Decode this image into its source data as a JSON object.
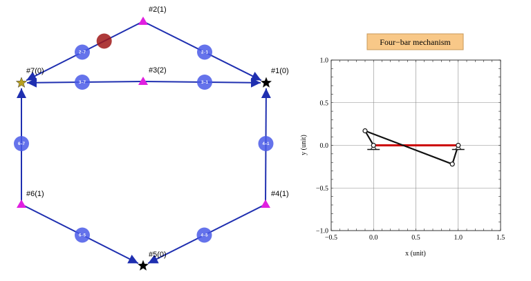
{
  "graph": {
    "edge_color": "#1f2fb0",
    "badge_color": "#4a5ae8",
    "marker_color": "#e020e0",
    "nodes": [
      {
        "id": "1",
        "label": "#1(0)",
        "shape": "star",
        "color": "#000000"
      },
      {
        "id": "2",
        "label": "#2(1)",
        "shape": "triangle",
        "color": "#e020e0"
      },
      {
        "id": "3",
        "label": "#3(2)",
        "shape": "triangle",
        "color": "#e020e0"
      },
      {
        "id": "4",
        "label": "#4(1)",
        "shape": "triangle",
        "color": "#e020e0"
      },
      {
        "id": "5",
        "label": "#5(0)",
        "shape": "star",
        "color": "#000000"
      },
      {
        "id": "6",
        "label": "#6(1)",
        "shape": "triangle",
        "color": "#e020e0"
      },
      {
        "id": "7",
        "label": "#7(0)",
        "shape": "star",
        "color": "#b8a020"
      }
    ],
    "edges": [
      {
        "from": "2",
        "to": "1",
        "label": "2–1"
      },
      {
        "from": "2",
        "to": "7",
        "label": "2–7"
      },
      {
        "from": "3",
        "to": "1",
        "label": "3–1"
      },
      {
        "from": "3",
        "to": "7",
        "label": "3–7"
      },
      {
        "from": "4",
        "to": "1",
        "label": "4–1"
      },
      {
        "from": "4",
        "to": "5",
        "label": "4–5"
      },
      {
        "from": "6",
        "to": "5",
        "label": "6–5"
      },
      {
        "from": "6",
        "to": "7",
        "label": "6–7"
      }
    ],
    "highlight": {
      "on_edge": "2–7",
      "color": "#a01818"
    }
  },
  "chart_data": {
    "type": "line",
    "title": "Four−bar mechanism",
    "title_bg": "#f8c888",
    "xlabel": "x (unit)",
    "ylabel": "y (unit)",
    "xlim": [
      -0.5,
      1.5
    ],
    "ylim": [
      -1.0,
      1.0
    ],
    "xticks": [
      -0.5,
      0.0,
      0.5,
      1.0,
      1.5
    ],
    "xtick_labels": [
      "−0.5",
      "0.0",
      "0.5",
      "1.0",
      "1.5"
    ],
    "yticks": [
      -1.0,
      -0.5,
      0.0,
      0.5,
      1.0
    ],
    "ytick_labels": [
      "−1.0",
      "−0.5",
      "0.0",
      "0.5",
      "1.0"
    ],
    "grid": true,
    "ground_link": {
      "points": [
        [
          0.0,
          0.0
        ],
        [
          1.0,
          0.0
        ]
      ],
      "color": "#cc0000"
    },
    "mechanism": {
      "points": [
        [
          0.0,
          0.0
        ],
        [
          -0.1,
          0.17
        ],
        [
          0.93,
          -0.22
        ],
        [
          1.0,
          0.0
        ]
      ],
      "color": "#111111"
    },
    "pivots": [
      [
        0.0,
        0.0
      ],
      [
        1.0,
        0.0
      ]
    ]
  }
}
